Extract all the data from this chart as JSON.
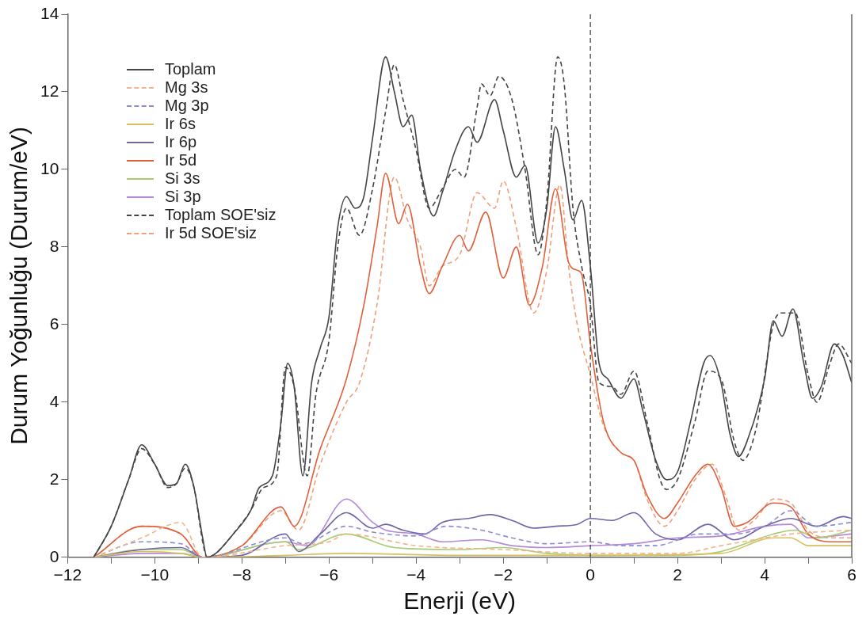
{
  "chart_data": {
    "type": "line",
    "xlabel": "Enerji (eV)",
    "ylabel": "Durum Yoğunluğu (Durum/eV)",
    "xlim": [
      -12,
      6
    ],
    "xticks": [
      -12,
      {
        "value": -11,
        "label": null
      },
      -10,
      {
        "value": -9,
        "label": null
      },
      -8,
      {
        "value": -7,
        "label": null
      },
      -6,
      {
        "value": -5,
        "label": null
      },
      -4,
      {
        "value": -3,
        "label": null
      },
      -2,
      {
        "value": -1,
        "label": null
      },
      0,
      {
        "value": 1,
        "label": null
      },
      2,
      {
        "value": 3,
        "label": null
      },
      4,
      {
        "value": 5,
        "label": null
      },
      6
    ],
    "ylim": [
      0,
      14
    ],
    "yticks": [
      0,
      2,
      4,
      6,
      8,
      10,
      12,
      14
    ],
    "grid": false,
    "legend": "top left",
    "marker": "none",
    "ref_lines": [
      {
        "axis": "x",
        "value": 0,
        "color": "#333333",
        "line_style": "dashed"
      }
    ],
    "series": [
      {
        "name": "Toplam",
        "color": "#444444",
        "line_style": "solid",
        "x": [
          -11.4,
          -11,
          -10.6,
          -10.3,
          -10,
          -9.7,
          -9.5,
          -9.3,
          -9.1,
          -8.9,
          -8.8,
          -8.6,
          -8.2,
          -7.8,
          -7.6,
          -7.3,
          -7.1,
          -6.95,
          -6.8,
          -6.6,
          -6.4,
          -6.2,
          -6,
          -5.8,
          -5.6,
          -5.4,
          -5.2,
          -5,
          -4.7,
          -4.5,
          -4.3,
          -4.1,
          -3.9,
          -3.6,
          -3.4,
          -3.1,
          -2.8,
          -2.6,
          -2.2,
          -2,
          -1.7,
          -1.5,
          -1.2,
          -1,
          -0.8,
          -0.6,
          -0.4,
          -0.2,
          0,
          0.2,
          0.4,
          0.7,
          1,
          1.2,
          1.5,
          1.75,
          2,
          2.3,
          2.6,
          2.75,
          3,
          3.2,
          3.4,
          3.6,
          4,
          4.2,
          4.4,
          4.65,
          4.9,
          5.1,
          5.3,
          5.6,
          5.8,
          6
        ],
        "values": [
          0,
          0.8,
          2,
          2.9,
          2.4,
          1.85,
          1.9,
          2.4,
          1.8,
          0.5,
          0,
          0.1,
          0.6,
          1.2,
          1.8,
          2.1,
          3.5,
          5,
          4.4,
          2.1,
          4.5,
          5.4,
          6.2,
          8.5,
          9.3,
          9,
          9.3,
          10.8,
          12.9,
          12,
          11.1,
          11.4,
          10,
          8.8,
          9.4,
          10.5,
          11.1,
          10.7,
          11.8,
          11,
          9.8,
          10.1,
          8.1,
          9,
          11.1,
          10,
          8.7,
          9.2,
          7.5,
          5,
          4.6,
          4.1,
          4.6,
          3.8,
          2.5,
          2,
          2.2,
          3.5,
          5,
          5.2,
          4.5,
          3.2,
          2.6,
          3,
          4.6,
          6.1,
          5.7,
          6.4,
          5,
          4.1,
          4.4,
          5.5,
          5.2,
          4.5
        ]
      },
      {
        "name": "Mg 3s",
        "color": "#f2b48c",
        "line_style": "dashed",
        "x": [
          -11.4,
          -10.3,
          -9.4,
          -8.9,
          -7,
          -6,
          -5.6,
          -4,
          -2,
          0,
          2,
          3,
          4,
          4.6,
          6
        ],
        "values": [
          0,
          0.5,
          0.9,
          0,
          0.3,
          0.4,
          0.6,
          0.3,
          0.2,
          0.1,
          0.1,
          0.3,
          0.5,
          0.6,
          0.7
        ]
      },
      {
        "name": "Mg 3p",
        "color": "#8c8cd2",
        "line_style": "dashed",
        "x": [
          -11.4,
          -10.3,
          -9.4,
          -8.9,
          -7,
          -6.6,
          -5.6,
          -5,
          -4,
          -3.3,
          -2.5,
          -1.8,
          -1,
          0,
          0.7,
          1.5,
          2.5,
          3.3,
          4,
          4.6,
          5.2,
          6
        ],
        "values": [
          0,
          0.4,
          0.35,
          0,
          0.5,
          0.35,
          0.8,
          0.65,
          0.55,
          0.8,
          0.7,
          0.5,
          0.35,
          0.4,
          0.3,
          0.3,
          0.6,
          0.6,
          0.8,
          1.2,
          0.8,
          0.9
        ]
      },
      {
        "name": "Ir 6s",
        "color": "#d8c060",
        "line_style": "solid",
        "x": [
          -11.4,
          -10.3,
          -9.4,
          -8.9,
          -7,
          -5.6,
          -3,
          0,
          3,
          4.2,
          4.6,
          5,
          6
        ],
        "values": [
          0,
          0.15,
          0.1,
          0,
          0.05,
          0.1,
          0.05,
          0.05,
          0.1,
          0.5,
          0.5,
          0.3,
          0.3
        ]
      },
      {
        "name": "Ir 6p",
        "color": "#6f66a8",
        "line_style": "solid",
        "x": [
          -11.4,
          -10.3,
          -9.4,
          -8.9,
          -8,
          -7,
          -6.7,
          -6.2,
          -5.6,
          -5,
          -4.7,
          -4.3,
          -3.8,
          -3.4,
          -2.8,
          -2.3,
          -1.8,
          -1.3,
          -0.8,
          -0.3,
          0,
          0.5,
          1,
          1.5,
          2,
          2.7,
          3.3,
          4,
          4.6,
          5.2,
          5.8,
          6
        ],
        "values": [
          0,
          0.2,
          0.25,
          0,
          0.05,
          0.6,
          0.15,
          0.6,
          1.15,
          0.75,
          0.85,
          0.7,
          0.6,
          0.9,
          1,
          1.1,
          0.95,
          0.75,
          0.8,
          0.85,
          1,
          0.95,
          1.15,
          0.6,
          0.45,
          0.85,
          0.45,
          0.8,
          1,
          0.8,
          1.05,
          1
        ]
      },
      {
        "name": "Ir 5d",
        "color": "#e0603c",
        "line_style": "solid",
        "x": [
          -11.4,
          -10.3,
          -9.4,
          -8.9,
          -8,
          -7.1,
          -6.8,
          -6.2,
          -5.6,
          -5.2,
          -4.9,
          -4.7,
          -4.4,
          -4.2,
          -3.9,
          -3.7,
          -3.4,
          -3,
          -2.8,
          -2.4,
          -2,
          -1.7,
          -1.4,
          -1.1,
          -0.8,
          -0.5,
          -0.3,
          -0.2,
          0,
          0.3,
          0.7,
          1,
          1.3,
          1.7,
          2,
          2.4,
          2.7,
          3,
          3.3,
          3.6,
          4.2,
          4.6,
          5,
          5.5,
          6
        ],
        "values": [
          0,
          0.8,
          0.6,
          0,
          0.3,
          1.3,
          0.8,
          2.8,
          4.6,
          6.5,
          8.5,
          9.9,
          8.6,
          9.1,
          7.5,
          6.8,
          7.5,
          8.3,
          7.9,
          8.9,
          7.2,
          8,
          6.5,
          7.5,
          9.5,
          7.6,
          7.4,
          7.3,
          5.5,
          3.5,
          2.7,
          2.5,
          1.6,
          1,
          1.4,
          2.1,
          2.4,
          1.8,
          0.8,
          0.9,
          1.4,
          1.3,
          0.6,
          0.4,
          0.4
        ]
      },
      {
        "name": "Si 3s",
        "color": "#a8cc70",
        "line_style": "solid",
        "x": [
          -11.4,
          -10.3,
          -9.4,
          -8.9,
          -7,
          -6.7,
          -5.6,
          -4.5,
          -3,
          -2,
          -1,
          0,
          2,
          3,
          4.2,
          4.7,
          5.2,
          6
        ],
        "values": [
          0,
          0.2,
          0.2,
          0,
          0.4,
          0.2,
          0.6,
          0.25,
          0.2,
          0.25,
          0.1,
          0.05,
          0.05,
          0.15,
          0.6,
          0.7,
          0.5,
          0.7
        ]
      },
      {
        "name": "Si 3p",
        "color": "#b48ad8",
        "line_style": "solid",
        "x": [
          -11.4,
          -10.3,
          -9.4,
          -8.9,
          -7,
          -6.5,
          -5.6,
          -5,
          -4.7,
          -4,
          -3.4,
          -2.5,
          -1.8,
          -1,
          0,
          1,
          2,
          3,
          4,
          4.6,
          5,
          6
        ],
        "values": [
          0,
          0.1,
          0.1,
          0,
          0.4,
          0.3,
          1.5,
          0.9,
          0.7,
          0.6,
          0.4,
          0.45,
          0.3,
          0.25,
          0.3,
          0.35,
          0.5,
          0.55,
          0.8,
          0.85,
          0.5,
          0.6
        ]
      },
      {
        "name": "Toplam SOE'siz",
        "color": "#444444",
        "line_style": "dashed",
        "x": [
          -11.4,
          -11,
          -10.6,
          -10.3,
          -10,
          -9.7,
          -9.5,
          -9.3,
          -9.1,
          -8.9,
          -8.8,
          -8.6,
          -8.2,
          -7.8,
          -7.5,
          -7.2,
          -7,
          -6.8,
          -6.5,
          -6.3,
          -6,
          -5.8,
          -5.6,
          -5.3,
          -5,
          -4.7,
          -4.5,
          -4.3,
          -4,
          -3.7,
          -3.4,
          -3.1,
          -2.9,
          -2.6,
          -2.5,
          -2.3,
          -2.1,
          -1.8,
          -1.5,
          -1.2,
          -1,
          -0.75,
          -0.6,
          -0.4,
          -0.2,
          0,
          0.2,
          0.5,
          0.7,
          1,
          1.3,
          1.6,
          1.75,
          2,
          2.4,
          2.7,
          3,
          3.3,
          3.5,
          3.8,
          4.2,
          4.4,
          4.7,
          5,
          5.2,
          5.5,
          5.7,
          6
        ],
        "values": [
          0,
          0.8,
          2,
          2.8,
          2.4,
          1.8,
          1.9,
          2.3,
          1.8,
          0.4,
          0,
          0.1,
          0.6,
          1.2,
          1.8,
          2.1,
          4.9,
          4.4,
          2.1,
          4.2,
          5.6,
          8,
          9,
          8.3,
          9.5,
          11.5,
          12.7,
          11.8,
          10.5,
          9,
          9.5,
          10,
          9.8,
          11.6,
          12.2,
          11.9,
          12.4,
          11.8,
          10,
          7.8,
          9.2,
          12.9,
          12.2,
          9,
          7.5,
          6.5,
          4.5,
          4.4,
          4.2,
          4.8,
          3.5,
          2,
          1.75,
          2,
          3.5,
          4.8,
          4.6,
          3,
          2.5,
          3.3,
          6,
          6.3,
          6.3,
          4.7,
          4,
          5,
          5.5,
          5
        ]
      },
      {
        "name": "Ir 5d SOE'siz",
        "color": "#f0a07c",
        "line_style": "dashed",
        "x": [
          -11.4,
          -10.3,
          -9.4,
          -8.9,
          -8,
          -7.1,
          -6.7,
          -6.2,
          -5.6,
          -5.3,
          -4.9,
          -4.5,
          -4.2,
          -3.9,
          -3.7,
          -3.4,
          -3,
          -2.6,
          -2.2,
          -2,
          -1.7,
          -1.3,
          -1,
          -0.7,
          -0.5,
          -0.3,
          0,
          0.3,
          0.7,
          1,
          1.3,
          1.7,
          2,
          2.4,
          2.8,
          3.1,
          3.4,
          3.8,
          4.2,
          4.6,
          5,
          5.5,
          6
        ],
        "values": [
          0,
          0.8,
          0.6,
          0,
          0.3,
          1.2,
          0.7,
          2.4,
          4,
          4.5,
          6.5,
          9.8,
          8.7,
          8,
          7,
          7.5,
          7.8,
          9.4,
          9,
          9.7,
          8.5,
          6.3,
          7.4,
          9.6,
          7.5,
          6,
          4.7,
          3.4,
          2.7,
          2.5,
          1.5,
          0.8,
          1.2,
          2,
          2.4,
          1.6,
          0.7,
          1,
          1.5,
          1.4,
          0.7,
          0.5,
          0.5
        ]
      }
    ]
  }
}
